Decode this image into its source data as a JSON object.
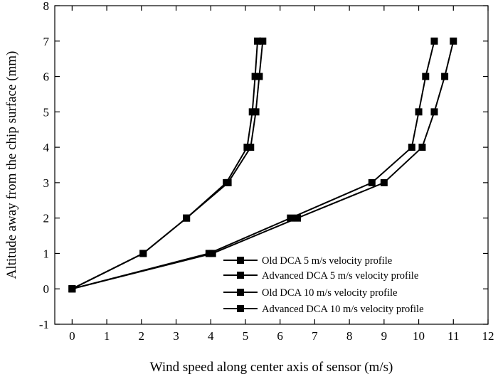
{
  "chart_data": {
    "type": "line",
    "title": "",
    "xlabel": "Wind speed along center axis of sensor (m/s)",
    "ylabel": "Altitude away from the chip surface (mm)",
    "xlim": [
      -0.5,
      12
    ],
    "ylim": [
      -1,
      8
    ],
    "xticks": [
      "0",
      "1",
      "2",
      "3",
      "4",
      "5",
      "6",
      "7",
      "8",
      "9",
      "10",
      "11",
      "12"
    ],
    "yticks": [
      "-1",
      "0",
      "1",
      "2",
      "3",
      "4",
      "5",
      "6",
      "7",
      "8"
    ],
    "grid": false,
    "legend_position": "bottom-right",
    "marker": "square",
    "series": [
      {
        "name": "Old DCA 5 m/s velocity profile",
        "points": [
          [
            0,
            0
          ],
          [
            2.05,
            1
          ],
          [
            3.3,
            2
          ],
          [
            4.45,
            3
          ],
          [
            5.05,
            4
          ],
          [
            5.2,
            5
          ],
          [
            5.28,
            6
          ],
          [
            5.35,
            7
          ]
        ]
      },
      {
        "name": "Advanced DCA 5 m/s velocity profile",
        "points": [
          [
            0,
            0
          ],
          [
            2.05,
            1
          ],
          [
            3.3,
            2
          ],
          [
            4.5,
            3
          ],
          [
            5.15,
            4
          ],
          [
            5.3,
            5
          ],
          [
            5.4,
            6
          ],
          [
            5.5,
            7
          ]
        ]
      },
      {
        "name": "Old DCA 10 m/s velocity profile",
        "points": [
          [
            0,
            0
          ],
          [
            3.95,
            1
          ],
          [
            6.3,
            2
          ],
          [
            8.65,
            3
          ],
          [
            9.8,
            4
          ],
          [
            10.0,
            5
          ],
          [
            10.2,
            6
          ],
          [
            10.45,
            7
          ]
        ]
      },
      {
        "name": "Advanced DCA 10 m/s velocity profile",
        "points": [
          [
            0,
            0
          ],
          [
            4.05,
            1
          ],
          [
            6.5,
            2
          ],
          [
            9.0,
            3
          ],
          [
            10.1,
            4
          ],
          [
            10.45,
            5
          ],
          [
            10.75,
            6
          ],
          [
            11.0,
            7
          ]
        ]
      }
    ]
  }
}
